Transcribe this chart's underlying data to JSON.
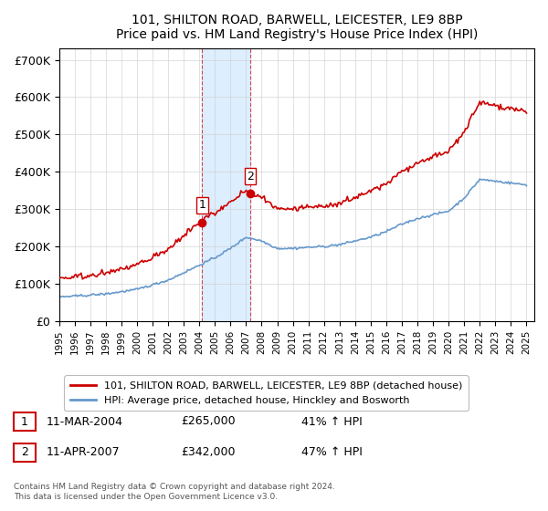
{
  "title": "101, SHILTON ROAD, BARWELL, LEICESTER, LE9 8BP",
  "subtitle": "Price paid vs. HM Land Registry's House Price Index (HPI)",
  "ylabel": "",
  "ylim": [
    0,
    730000
  ],
  "yticks": [
    0,
    100000,
    200000,
    300000,
    400000,
    500000,
    600000,
    700000
  ],
  "ytick_labels": [
    "£0",
    "£100K",
    "£200K",
    "£300K",
    "£400K",
    "£500K",
    "£600K",
    "£700K"
  ],
  "sale1": {
    "date_num": 2004.19,
    "price": 265000,
    "label": "1",
    "date_str": "11-MAR-2004",
    "pct": "41%"
  },
  "sale2": {
    "date_num": 2007.27,
    "price": 342000,
    "label": "2",
    "date_str": "11-APR-2007",
    "pct": "47%"
  },
  "hpi_color": "#6699cc",
  "sale_color": "#cc0000",
  "shade_color": "#ddeeff",
  "background_color": "#ffffff",
  "footer": "Contains HM Land Registry data © Crown copyright and database right 2024.\nThis data is licensed under the Open Government Licence v3.0.",
  "legend_line1": "101, SHILTON ROAD, BARWELL, LEICESTER, LE9 8BP (detached house)",
  "legend_line2": "HPI: Average price, detached house, Hinckley and Bosworth",
  "table_row1": "11-MAR-2004    £265,000    41% ↑ HPI",
  "table_row2": "11-APR-2007    £342,000    47% ↑ HPI"
}
